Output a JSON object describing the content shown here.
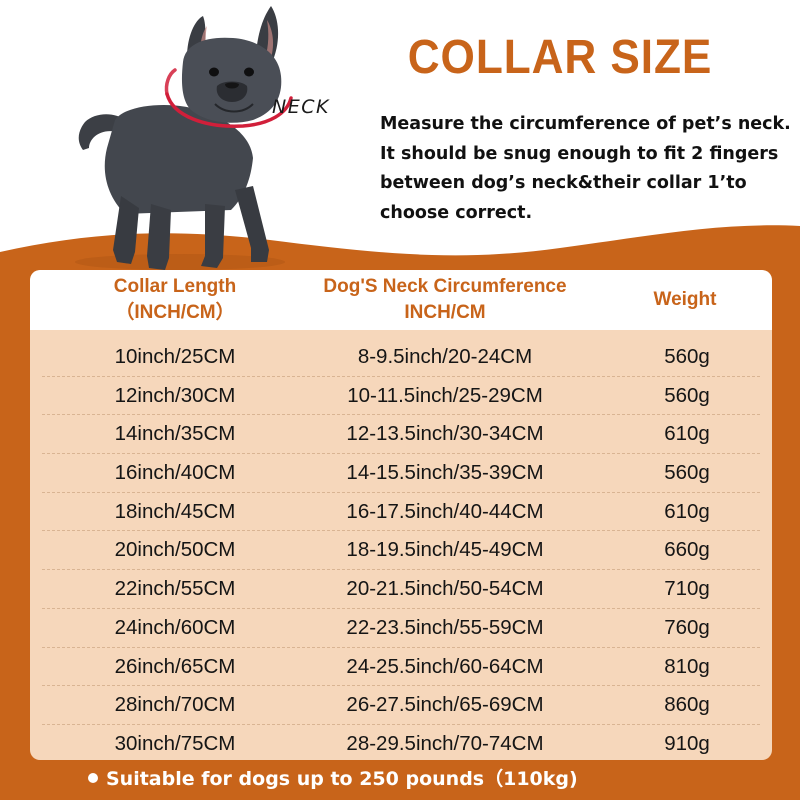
{
  "title": "COLLAR SIZE",
  "neck_label": "NECK",
  "description": [
    "Measure the circumference of pet’s neck.",
    "It should be snug enough to fit 2 fingers",
    "between dog’s neck&their collar 1’to",
    "choose correct."
  ],
  "table": {
    "headers": {
      "col1_line1": "Collar Length",
      "col1_line2": "（INCH/CM）",
      "col2_line1": "Dog'S Neck Circumference",
      "col2_line2": "INCH/CM",
      "col3": "Weight"
    },
    "rows": [
      [
        "10inch/25CM",
        "8-9.5inch/20-24CM",
        "560g"
      ],
      [
        "12inch/30CM",
        "10-11.5inch/25-29CM",
        "560g"
      ],
      [
        "14inch/35CM",
        "12-13.5inch/30-34CM",
        "610g"
      ],
      [
        "16inch/40CM",
        "14-15.5inch/35-39CM",
        "560g"
      ],
      [
        "18inch/45CM",
        "16-17.5inch/40-44CM",
        "610g"
      ],
      [
        "20inch/50CM",
        "18-19.5inch/45-49CM",
        "660g"
      ],
      [
        "22inch/55CM",
        "20-21.5inch/50-54CM",
        "710g"
      ],
      [
        "24inch/60CM",
        "22-23.5inch/55-59CM",
        "760g"
      ],
      [
        "26inch/65CM",
        "24-25.5inch/60-64CM",
        "810g"
      ],
      [
        "28inch/70CM",
        "26-27.5inch/65-69CM",
        "860g"
      ],
      [
        "30inch/75CM",
        "28-29.5inch/70-74CM",
        "910g"
      ]
    ]
  },
  "footer_note": "Suitable for dogs up to 250 pounds（110kg)",
  "colors": {
    "accent_orange": "#c8641a",
    "table_fill": "#f6d7bb",
    "neck_ring": "#d11f3a"
  }
}
